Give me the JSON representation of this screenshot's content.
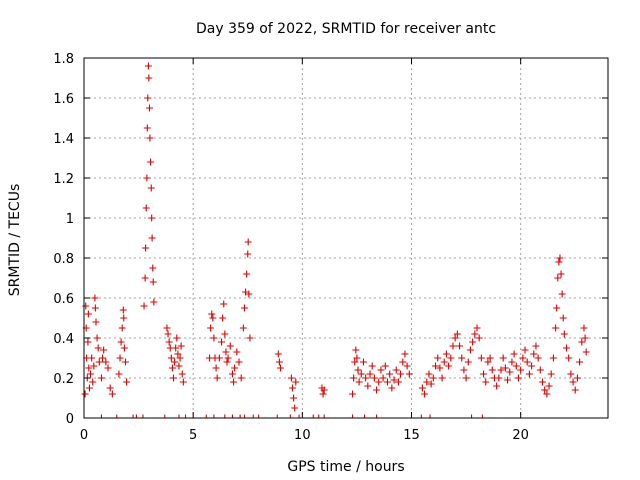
{
  "chart_data": {
    "type": "scatter",
    "title": "Day 359 of 2022, SRMTID for receiver antc",
    "xlabel": "GPS time / hours",
    "ylabel": "SRMTID / TECUs",
    "xlim": [
      0,
      24
    ],
    "ylim": [
      0,
      1.8
    ],
    "xticks": [
      0,
      5,
      10,
      15,
      20
    ],
    "yticks": [
      0,
      0.2,
      0.4,
      0.6,
      0.8,
      1,
      1.2,
      1.4,
      1.6,
      1.8
    ],
    "xtick_labels": [
      "0",
      "5",
      "10",
      "15",
      "20"
    ],
    "ytick_labels": [
      "0",
      "0.2",
      "0.4",
      "0.6",
      "0.8",
      "1",
      "1.2",
      "1.4",
      "1.6",
      "1.8"
    ],
    "grid": true,
    "marker": "+",
    "color": "#e00000",
    "series": [
      {
        "name": "SRMTID",
        "points": [
          [
            0.05,
            0.12
          ],
          [
            0.08,
            0.56
          ],
          [
            0.1,
            0.45
          ],
          [
            0.12,
            0.3
          ],
          [
            0.15,
            0.2
          ],
          [
            0.18,
            0.38
          ],
          [
            0.2,
            0.52
          ],
          [
            0.22,
            0.25
          ],
          [
            0.25,
            0.15
          ],
          [
            0.3,
            0.22
          ],
          [
            0.35,
            0.3
          ],
          [
            0.4,
            0.18
          ],
          [
            0.45,
            0.26
          ],
          [
            0.5,
            0.6
          ],
          [
            0.52,
            0.55
          ],
          [
            0.55,
            0.48
          ],
          [
            0.6,
            0.4
          ],
          [
            0.65,
            0.35
          ],
          [
            0.7,
            0.28
          ],
          [
            0.8,
            0.2
          ],
          [
            0.85,
            0.3
          ],
          [
            0.9,
            0.34
          ],
          [
            1.0,
            0.28
          ],
          [
            1.1,
            0.25
          ],
          [
            1.2,
            0.15
          ],
          [
            1.3,
            0.12
          ],
          [
            1.6,
            0.22
          ],
          [
            1.65,
            0.3
          ],
          [
            1.7,
            0.38
          ],
          [
            1.75,
            0.45
          ],
          [
            1.8,
            0.54
          ],
          [
            1.82,
            0.5
          ],
          [
            1.85,
            0.35
          ],
          [
            1.9,
            0.28
          ],
          [
            1.95,
            0.18
          ],
          [
            2.75,
            0.56
          ],
          [
            2.8,
            0.7
          ],
          [
            2.82,
            0.85
          ],
          [
            2.85,
            1.05
          ],
          [
            2.88,
            1.2
          ],
          [
            2.9,
            1.45
          ],
          [
            2.92,
            1.6
          ],
          [
            2.95,
            1.76
          ],
          [
            2.97,
            1.7
          ],
          [
            3.0,
            1.55
          ],
          [
            3.02,
            1.4
          ],
          [
            3.05,
            1.28
          ],
          [
            3.08,
            1.15
          ],
          [
            3.1,
            1.0
          ],
          [
            3.12,
            0.9
          ],
          [
            3.15,
            0.75
          ],
          [
            3.17,
            0.68
          ],
          [
            3.2,
            0.58
          ],
          [
            3.8,
            0.45
          ],
          [
            3.85,
            0.42
          ],
          [
            3.9,
            0.38
          ],
          [
            3.95,
            0.35
          ],
          [
            4.0,
            0.3
          ],
          [
            4.05,
            0.25
          ],
          [
            4.1,
            0.2
          ],
          [
            4.15,
            0.28
          ],
          [
            4.2,
            0.35
          ],
          [
            4.25,
            0.4
          ],
          [
            4.3,
            0.32
          ],
          [
            4.35,
            0.26
          ],
          [
            4.4,
            0.3
          ],
          [
            4.45,
            0.36
          ],
          [
            4.5,
            0.22
          ],
          [
            4.55,
            0.18
          ],
          [
            5.75,
            0.3
          ],
          [
            5.8,
            0.45
          ],
          [
            5.85,
            0.52
          ],
          [
            5.9,
            0.5
          ],
          [
            5.95,
            0.4
          ],
          [
            6.0,
            0.3
          ],
          [
            6.05,
            0.25
          ],
          [
            6.1,
            0.2
          ],
          [
            6.2,
            0.3
          ],
          [
            6.3,
            0.38
          ],
          [
            6.35,
            0.5
          ],
          [
            6.4,
            0.57
          ],
          [
            6.45,
            0.42
          ],
          [
            6.5,
            0.33
          ],
          [
            6.55,
            0.28
          ],
          [
            6.6,
            0.3
          ],
          [
            6.7,
            0.36
          ],
          [
            6.8,
            0.22
          ],
          [
            6.85,
            0.18
          ],
          [
            6.9,
            0.25
          ],
          [
            7.0,
            0.33
          ],
          [
            7.1,
            0.28
          ],
          [
            7.2,
            0.2
          ],
          [
            7.3,
            0.45
          ],
          [
            7.35,
            0.55
          ],
          [
            7.4,
            0.63
          ],
          [
            7.45,
            0.72
          ],
          [
            7.5,
            0.82
          ],
          [
            7.52,
            0.88
          ],
          [
            7.55,
            0.62
          ],
          [
            7.6,
            0.4
          ],
          [
            8.9,
            0.32
          ],
          [
            8.95,
            0.28
          ],
          [
            9.0,
            0.25
          ],
          [
            9.5,
            0.2
          ],
          [
            9.55,
            0.15
          ],
          [
            9.6,
            0.1
          ],
          [
            9.65,
            0.05
          ],
          [
            9.7,
            0.18
          ],
          [
            10.9,
            0.15
          ],
          [
            10.95,
            0.12
          ],
          [
            11.0,
            0.14
          ],
          [
            12.3,
            0.12
          ],
          [
            12.35,
            0.2
          ],
          [
            12.4,
            0.28
          ],
          [
            12.45,
            0.34
          ],
          [
            12.5,
            0.3
          ],
          [
            12.55,
            0.24
          ],
          [
            12.6,
            0.18
          ],
          [
            12.7,
            0.22
          ],
          [
            12.8,
            0.28
          ],
          [
            12.9,
            0.2
          ],
          [
            13.0,
            0.16
          ],
          [
            13.1,
            0.22
          ],
          [
            13.2,
            0.26
          ],
          [
            13.3,
            0.2
          ],
          [
            13.4,
            0.14
          ],
          [
            13.5,
            0.18
          ],
          [
            13.6,
            0.24
          ],
          [
            13.7,
            0.2
          ],
          [
            13.8,
            0.26
          ],
          [
            13.9,
            0.18
          ],
          [
            14.0,
            0.22
          ],
          [
            14.1,
            0.15
          ],
          [
            14.2,
            0.19
          ],
          [
            14.3,
            0.24
          ],
          [
            14.4,
            0.18
          ],
          [
            14.5,
            0.22
          ],
          [
            14.6,
            0.28
          ],
          [
            14.7,
            0.32
          ],
          [
            14.8,
            0.26
          ],
          [
            14.9,
            0.22
          ],
          [
            15.5,
            0.15
          ],
          [
            15.6,
            0.12
          ],
          [
            15.7,
            0.18
          ],
          [
            15.8,
            0.22
          ],
          [
            15.9,
            0.17
          ],
          [
            16.0,
            0.2
          ],
          [
            16.1,
            0.26
          ],
          [
            16.2,
            0.3
          ],
          [
            16.3,
            0.25
          ],
          [
            16.4,
            0.2
          ],
          [
            16.5,
            0.28
          ],
          [
            16.6,
            0.32
          ],
          [
            16.7,
            0.26
          ],
          [
            16.8,
            0.3
          ],
          [
            16.9,
            0.36
          ],
          [
            17.0,
            0.4
          ],
          [
            17.1,
            0.42
          ],
          [
            17.2,
            0.36
          ],
          [
            17.3,
            0.3
          ],
          [
            17.4,
            0.24
          ],
          [
            17.5,
            0.2
          ],
          [
            17.6,
            0.28
          ],
          [
            17.7,
            0.34
          ],
          [
            17.8,
            0.38
          ],
          [
            17.9,
            0.42
          ],
          [
            18.0,
            0.45
          ],
          [
            18.1,
            0.4
          ],
          [
            18.2,
            0.3
          ],
          [
            18.3,
            0.22
          ],
          [
            18.4,
            0.18
          ],
          [
            18.5,
            0.28
          ],
          [
            18.6,
            0.3
          ],
          [
            18.7,
            0.24
          ],
          [
            18.8,
            0.2
          ],
          [
            18.9,
            0.16
          ],
          [
            19.0,
            0.2
          ],
          [
            19.1,
            0.24
          ],
          [
            19.2,
            0.3
          ],
          [
            19.3,
            0.25
          ],
          [
            19.4,
            0.19
          ],
          [
            19.5,
            0.23
          ],
          [
            19.6,
            0.28
          ],
          [
            19.7,
            0.32
          ],
          [
            19.8,
            0.26
          ],
          [
            19.9,
            0.2
          ],
          [
            20.0,
            0.24
          ],
          [
            20.1,
            0.3
          ],
          [
            20.2,
            0.34
          ],
          [
            20.3,
            0.28
          ],
          [
            20.4,
            0.22
          ],
          [
            20.5,
            0.26
          ],
          [
            20.6,
            0.32
          ],
          [
            20.7,
            0.36
          ],
          [
            20.8,
            0.3
          ],
          [
            20.9,
            0.24
          ],
          [
            21.0,
            0.18
          ],
          [
            21.1,
            0.14
          ],
          [
            21.2,
            0.12
          ],
          [
            21.3,
            0.16
          ],
          [
            21.4,
            0.22
          ],
          [
            21.5,
            0.3
          ],
          [
            21.6,
            0.45
          ],
          [
            21.65,
            0.55
          ],
          [
            21.7,
            0.7
          ],
          [
            21.75,
            0.78
          ],
          [
            21.8,
            0.8
          ],
          [
            21.85,
            0.72
          ],
          [
            21.9,
            0.62
          ],
          [
            21.95,
            0.5
          ],
          [
            22.0,
            0.42
          ],
          [
            22.1,
            0.35
          ],
          [
            22.2,
            0.3
          ],
          [
            22.3,
            0.22
          ],
          [
            22.4,
            0.18
          ],
          [
            22.5,
            0.14
          ],
          [
            22.6,
            0.2
          ],
          [
            22.7,
            0.28
          ],
          [
            22.8,
            0.38
          ],
          [
            22.9,
            0.45
          ],
          [
            22.95,
            0.4
          ],
          [
            23.0,
            0.33
          ]
        ]
      }
    ],
    "zero_points_x": [
      0.8,
      1.5,
      2.25,
      2.4,
      2.7,
      3.7,
      4.35,
      4.65,
      5.6,
      5.95,
      6.45,
      6.8,
      7.15,
      7.35,
      7.75,
      8.0,
      8.85,
      9.45,
      9.85,
      10.5,
      10.75,
      11.0,
      12.3,
      12.85,
      13.4,
      15.45,
      15.85,
      17.75,
      18.25
    ]
  }
}
